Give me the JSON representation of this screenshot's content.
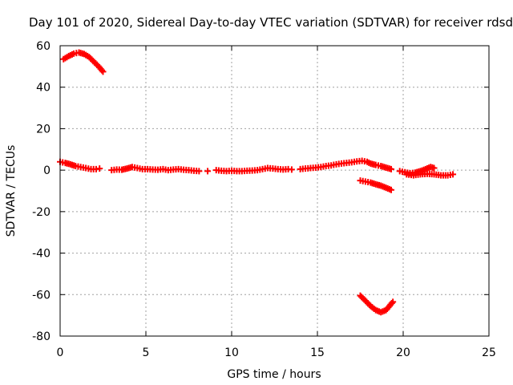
{
  "chart_data": {
    "type": "scatter",
    "title": "Day 101 of 2020, Sidereal Day-to-day VTEC variation (SDTVAR) for receiver rdsd",
    "xlabel": "GPS time / hours",
    "ylabel": "SDTVAR / TECUs",
    "xlim": [
      0,
      25
    ],
    "ylim": [
      -80,
      60
    ],
    "xticks": [
      0,
      5,
      10,
      15,
      20,
      25
    ],
    "xtick_labels": [
      "0",
      "5",
      "10",
      "15",
      "20",
      "25"
    ],
    "yticks": [
      -80,
      -60,
      -40,
      -20,
      0,
      20,
      40,
      60
    ],
    "ytick_labels": [
      "-80",
      "-60",
      "-40",
      "-20",
      "0",
      "20",
      "40",
      "60"
    ],
    "grid": true,
    "marker": "plus",
    "color": "#ff0000",
    "series": [
      {
        "name": "high-arc",
        "points": [
          [
            0.2,
            53.5
          ],
          [
            0.5,
            55.0
          ],
          [
            0.8,
            56.2
          ],
          [
            1.1,
            56.7
          ],
          [
            1.4,
            56.0
          ],
          [
            1.7,
            54.5
          ],
          [
            2.0,
            52.0
          ],
          [
            2.3,
            49.5
          ],
          [
            2.5,
            47.5
          ]
        ]
      },
      {
        "name": "main-trace",
        "points": [
          [
            0.0,
            4.0
          ],
          [
            0.3,
            3.5
          ],
          [
            0.6,
            2.8
          ],
          [
            0.9,
            2.0
          ],
          [
            1.2,
            1.5
          ],
          [
            1.5,
            1.0
          ],
          [
            1.8,
            0.5
          ],
          [
            2.1,
            0.5
          ],
          [
            2.3,
            0.8
          ],
          [
            3.0,
            0.0
          ],
          [
            3.3,
            0.3
          ],
          [
            3.6,
            0.2
          ],
          [
            3.9,
            0.8
          ],
          [
            4.2,
            1.5
          ],
          [
            4.5,
            1.0
          ],
          [
            4.8,
            0.5
          ],
          [
            5.1,
            0.5
          ],
          [
            5.4,
            0.3
          ],
          [
            5.7,
            0.2
          ],
          [
            6.0,
            0.5
          ],
          [
            6.3,
            0.0
          ],
          [
            6.6,
            0.3
          ],
          [
            6.9,
            0.5
          ],
          [
            7.2,
            0.2
          ],
          [
            7.5,
            0.0
          ],
          [
            7.8,
            -0.3
          ],
          [
            8.1,
            -0.5
          ],
          [
            8.6,
            -0.5
          ],
          [
            9.1,
            0.0
          ],
          [
            9.4,
            -0.3
          ],
          [
            9.7,
            -0.5
          ],
          [
            10.0,
            -0.3
          ],
          [
            10.3,
            -0.5
          ],
          [
            10.6,
            -0.5
          ],
          [
            10.9,
            -0.3
          ],
          [
            11.2,
            -0.2
          ],
          [
            11.5,
            0.0
          ],
          [
            11.8,
            0.5
          ],
          [
            12.1,
            1.0
          ],
          [
            12.4,
            0.8
          ],
          [
            12.7,
            0.5
          ],
          [
            13.0,
            0.3
          ],
          [
            13.3,
            0.5
          ],
          [
            13.5,
            0.3
          ],
          [
            14.0,
            0.5
          ],
          [
            14.3,
            0.8
          ],
          [
            14.6,
            1.0
          ],
          [
            14.9,
            1.2
          ],
          [
            15.2,
            1.5
          ],
          [
            15.5,
            2.0
          ],
          [
            15.8,
            2.3
          ],
          [
            16.1,
            2.8
          ],
          [
            16.4,
            3.2
          ],
          [
            16.7,
            3.5
          ],
          [
            17.0,
            3.8
          ],
          [
            17.3,
            4.2
          ],
          [
            17.6,
            4.5
          ],
          [
            17.9,
            4.0
          ],
          [
            18.1,
            3.2
          ],
          [
            18.4,
            2.5
          ],
          [
            18.7,
            2.0
          ],
          [
            19.0,
            1.2
          ],
          [
            19.3,
            0.5
          ]
        ]
      },
      {
        "name": "late-trace",
        "points": [
          [
            19.8,
            -0.5
          ],
          [
            20.1,
            -1.0
          ],
          [
            20.4,
            -1.5
          ],
          [
            20.7,
            -1.2
          ],
          [
            21.0,
            -0.5
          ],
          [
            21.3,
            0.5
          ],
          [
            21.6,
            1.5
          ],
          [
            21.8,
            1.0
          ],
          [
            20.2,
            -2.0
          ],
          [
            20.6,
            -2.5
          ],
          [
            21.0,
            -2.0
          ],
          [
            21.4,
            -1.8
          ],
          [
            21.8,
            -2.0
          ],
          [
            22.2,
            -2.5
          ],
          [
            22.6,
            -2.5
          ],
          [
            22.9,
            -2.0
          ]
        ]
      },
      {
        "name": "mid-negative-trace",
        "points": [
          [
            17.5,
            -5.0
          ],
          [
            17.8,
            -5.5
          ],
          [
            18.1,
            -6.0
          ],
          [
            18.4,
            -6.8
          ],
          [
            18.7,
            -7.5
          ],
          [
            19.0,
            -8.5
          ],
          [
            19.3,
            -9.5
          ]
        ]
      },
      {
        "name": "low-arc",
        "points": [
          [
            17.5,
            -60.5
          ],
          [
            17.8,
            -63.0
          ],
          [
            18.1,
            -65.5
          ],
          [
            18.4,
            -67.5
          ],
          [
            18.7,
            -68.5
          ],
          [
            19.0,
            -67.5
          ],
          [
            19.2,
            -65.5
          ],
          [
            19.4,
            -63.5
          ]
        ]
      }
    ]
  }
}
